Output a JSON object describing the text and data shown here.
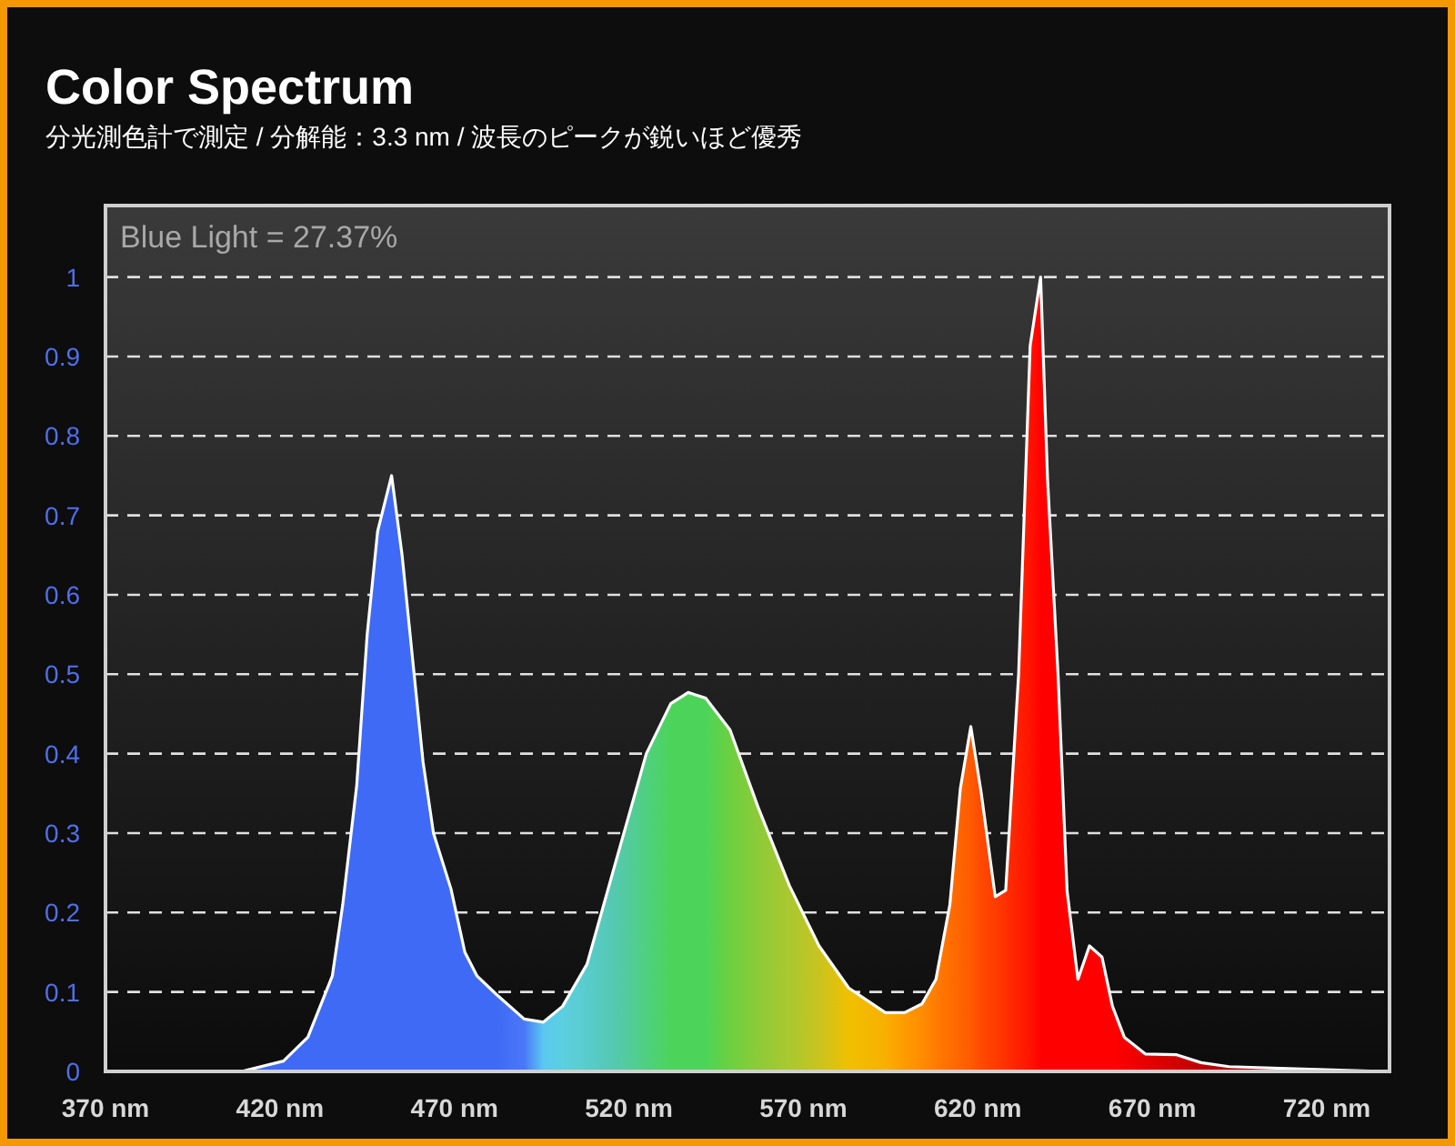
{
  "chart_data": {
    "type": "area",
    "title": "Color Spectrum",
    "subtitle": "分光測色計で測定 / 分解能：3.3 nm / 波長のピークが鋭いほど優秀",
    "annotations": [
      "Blue Light = 27.37%"
    ],
    "x": [
      370,
      409,
      421,
      428,
      435,
      438,
      442,
      445,
      448,
      452,
      455,
      458,
      461,
      464,
      469,
      473,
      476.5,
      482,
      490,
      495.5,
      501,
      508,
      516,
      525,
      532,
      537,
      542,
      549,
      557,
      566,
      574.5,
      583,
      593.5,
      599,
      604,
      608,
      612,
      615,
      618,
      621,
      625,
      628,
      631.7,
      635,
      638,
      640,
      643,
      645.6,
      648.7,
      652,
      655.6,
      658.6,
      662,
      668,
      677,
      684,
      692,
      713,
      736.6
    ],
    "series": [
      {
        "color": "#ffffff",
        "values": [
          0,
          0,
          0.013,
          0.043,
          0.12,
          0.21,
          0.36,
          0.55,
          0.68,
          0.75,
          0.65,
          0.52,
          0.39,
          0.3,
          0.23,
          0.15,
          0.12,
          0.097,
          0.066,
          0.062,
          0.082,
          0.135,
          0.26,
          0.4,
          0.463,
          0.477,
          0.47,
          0.43,
          0.333,
          0.234,
          0.158,
          0.105,
          0.074,
          0.074,
          0.085,
          0.116,
          0.21,
          0.356,
          0.434,
          0.35,
          0.22,
          0.228,
          0.5,
          0.913,
          1.0,
          0.745,
          0.5,
          0.227,
          0.116,
          0.158,
          0.144,
          0.082,
          0.043,
          0.022,
          0.021,
          0.011,
          0.006,
          0.003,
          0
        ],
        "colors": [
          "#3f6af5",
          "#3f6af5",
          "#3f6af5",
          "#3f6af5",
          "#3f6af5",
          "#3f6af5",
          "#3f6af5",
          "#3f6af5",
          "#3f6af5",
          "#3f6af5",
          "#3f6af5",
          "#3f6af5",
          "#3f6af5",
          "#3f6af5",
          "#3f6af5",
          "#3f6af5",
          "#3f6af5",
          "#3f6af5",
          "#4a78f8",
          "#5ac8f0",
          "#5ccfe0",
          "#58cccc",
          "#55c8b0",
          "#50d080",
          "#4cd45a",
          "#4cd45a",
          "#4cd45a",
          "#6cd040",
          "#8ccb38",
          "#aac830",
          "#c8c420",
          "#f0c000",
          "#f8b000",
          "#ff9a00",
          "#ff8c00",
          "#ff7c00",
          "#ff6e00",
          "#ff6400",
          "#ff5a00",
          "#ff4a00",
          "#ff3c00",
          "#ff3000",
          "#ff2000",
          "#ff1400",
          "#ff0000",
          "#ff0000",
          "#ff0000",
          "#ff0000",
          "#ff0000",
          "#ff0000",
          "#ff0000",
          "#ff0000",
          "#f80000",
          "#e80000",
          "#d00000",
          "#c00000",
          "#b00000",
          "#a00000",
          "#900000"
        ]
      }
    ],
    "xlim": [
      370,
      738
    ],
    "xticks": [
      {
        "value": 370,
        "label": "370 nm"
      },
      {
        "value": 420,
        "label": "420 nm"
      },
      {
        "value": 470,
        "label": "470 nm"
      },
      {
        "value": 520,
        "label": "520 nm"
      },
      {
        "value": 570,
        "label": "570 nm"
      },
      {
        "value": 620,
        "label": "620 nm"
      },
      {
        "value": 670,
        "label": "670 nm"
      },
      {
        "value": 720,
        "label": "720 nm"
      }
    ],
    "ylim": [
      0,
      1.09
    ],
    "yticks": [
      0,
      0.1,
      0.2,
      0.3,
      0.4,
      0.5,
      0.6,
      0.7,
      0.8,
      0.9,
      1
    ],
    "grid": "y"
  }
}
